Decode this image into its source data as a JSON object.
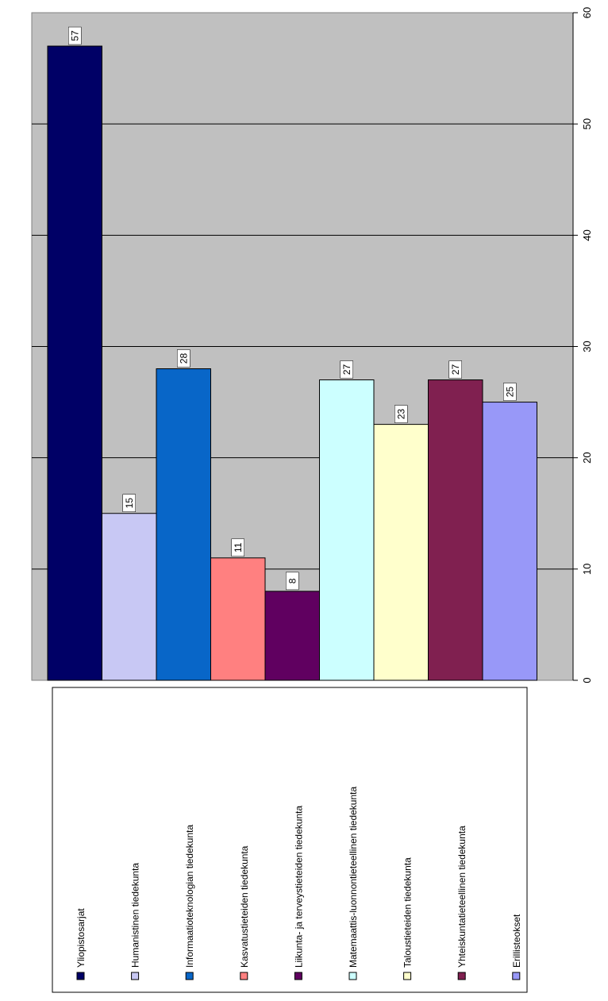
{
  "chart_data": {
    "type": "bar",
    "orientation": "rotated-90-clockwise",
    "categories": [
      "Yliopistosarjat",
      "Humanistinen tiedekunta",
      "Informaatioteknologian tiedekunta",
      "Kasvatustieteiden tiedekunta",
      "Liikunta- ja terveystieteiden tiedekunta",
      "Matemaattis-luonnontieteellinen tiedekunta",
      "Taloustieteiden tiedekunta",
      "Yhteiskuntatieteellinen tiedekunta",
      "Erillisteokset"
    ],
    "values": [
      57,
      15,
      28,
      11,
      8,
      27,
      23,
      27,
      25
    ],
    "colors": [
      "#000066",
      "#c8c8f4",
      "#0866c8",
      "#ff8080",
      "#600060",
      "#ccffff",
      "#ffffcc",
      "#802050",
      "#9898f8"
    ],
    "data_labels": [
      "57",
      "15",
      "28",
      "11",
      "8",
      "27",
      "23",
      "27",
      "25"
    ],
    "ylim": [
      0,
      60
    ],
    "yticks": [
      "0",
      "10",
      "20",
      "30",
      "40",
      "50",
      "60"
    ],
    "grid": true,
    "plot_background": "#c0c0c0",
    "legend_position": "bottom",
    "title": "",
    "xlabel": "",
    "ylabel": ""
  }
}
